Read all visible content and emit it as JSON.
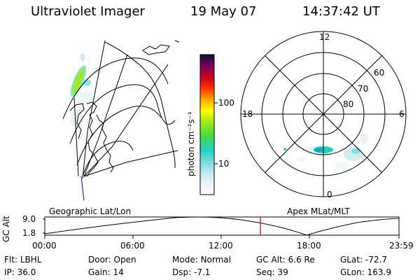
{
  "header": {
    "title": "Ultraviolet Imager",
    "date": "19 May 07",
    "time": "14:37:42 UT"
  },
  "colorbar": {
    "label": "photon cm⁻²s⁻¹",
    "tick_labels": [
      "100",
      "10"
    ]
  },
  "polar": {
    "mlt_labels": [
      "12",
      "18",
      "6",
      "0"
    ],
    "lat_labels": [
      "60",
      "70",
      "80"
    ]
  },
  "timeline": {
    "left_label": "Geographic Lat/Lon",
    "right_label": "Apex MLat/MLT",
    "axis_title": "GC Alt",
    "y_labels": [
      "9.0",
      "1.8"
    ],
    "x_labels": [
      "00:00",
      "06:00",
      "12:00",
      "18:00",
      "23:59"
    ],
    "marker_color": "#cc0000"
  },
  "footer": {
    "row1": [
      {
        "key": "Flt:",
        "val": "LBHL"
      },
      {
        "key": "Door:",
        "val": "Open"
      },
      {
        "key": "Mode:",
        "val": "Normal"
      },
      {
        "key": "GC Alt:",
        "val": "6.6 Re"
      },
      {
        "key": "GLat:",
        "val": "-72.7"
      }
    ],
    "row2": [
      {
        "key": "IP:",
        "val": "36.0"
      },
      {
        "key": "Gain:",
        "val": "14"
      },
      {
        "key": "Dsp:",
        "val": "-7.1"
      },
      {
        "key": "Seq:",
        "val": "39"
      },
      {
        "key": "GLon:",
        "val": "163.9"
      }
    ]
  }
}
